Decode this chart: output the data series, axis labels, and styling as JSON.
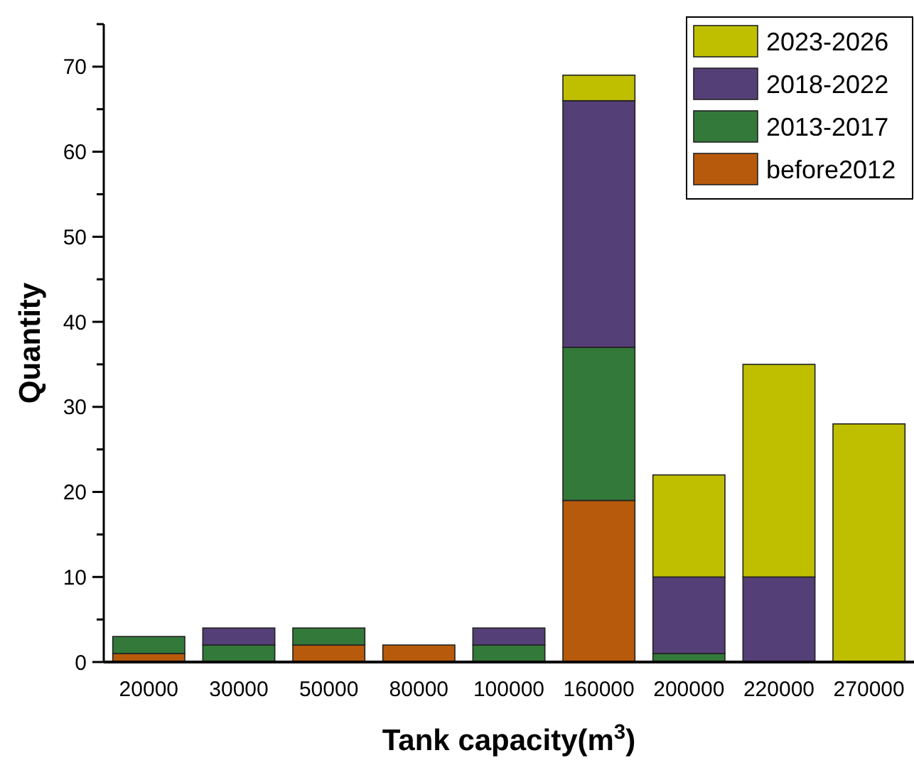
{
  "chart_data": {
    "type": "bar",
    "stacked": true,
    "xlabel": "Tank capacity(m$^{3}$)",
    "ylabel": "Quantity",
    "categories": [
      "20000",
      "30000",
      "50000",
      "80000",
      "100000",
      "160000",
      "200000",
      "220000",
      "270000"
    ],
    "series": [
      {
        "name": "before2012",
        "color": "#b85a0b",
        "values": [
          1,
          0,
          2,
          2,
          0,
          19,
          0,
          0,
          0
        ]
      },
      {
        "name": "2013-2017",
        "color": "#33793a",
        "values": [
          2,
          2,
          2,
          0,
          2,
          18,
          1,
          0,
          0
        ]
      },
      {
        "name": "2018-2022",
        "color": "#553f77",
        "values": [
          0,
          2,
          0,
          0,
          2,
          29,
          9,
          10,
          0
        ]
      },
      {
        "name": "2023-2026",
        "color": "#bfbf00",
        "values": [
          0,
          0,
          0,
          0,
          0,
          3,
          12,
          25,
          28
        ]
      }
    ],
    "ylim": [
      0,
      75
    ],
    "yticks": [
      0,
      {
        "value": 5,
        "label": null
      },
      10,
      {
        "value": 15,
        "label": null
      },
      20,
      {
        "value": 25,
        "label": null
      },
      30,
      {
        "value": 35,
        "label": null
      },
      40,
      {
        "value": 45,
        "label": null
      },
      50,
      {
        "value": 55,
        "label": null
      },
      60,
      {
        "value": 65,
        "label": null
      },
      70,
      {
        "value": 75,
        "label": null
      }
    ],
    "legend": "top right"
  }
}
